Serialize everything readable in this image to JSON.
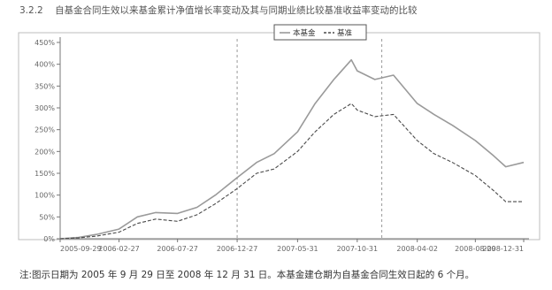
{
  "heading": {
    "number": "3.2.2",
    "title": "自基金合同生效以来基金累计净值增长率变动及其与同期业绩比较基准收益率变动的比较"
  },
  "note": "注:图示日期为 2005 年 9 月 29 日至 2008 年 12 月 31 日。本基金建仓期为自基金合同生效日起的 6 个月。",
  "chart_data": {
    "type": "line",
    "title": "",
    "xlabel": "",
    "ylabel": "",
    "y_tick_labels": [
      "0%",
      "50%",
      "100%",
      "150%",
      "200%",
      "250%",
      "300%",
      "350%",
      "400%",
      "450%"
    ],
    "ylim": [
      0,
      450
    ],
    "x_tick_labels": [
      "2005-09-29",
      "2006-02-27",
      "2006-07-27",
      "2006-12-27",
      "2007-05-31",
      "2007-10-31",
      "2008-04-02",
      "2008-08-29",
      "2008-12-31"
    ],
    "grid": "dashed vertical guide lines",
    "legend": {
      "position": "top-center",
      "entries": [
        "本基金",
        "基准"
      ]
    },
    "colors": {
      "fund": "#9a9a9a",
      "benchmark": "#4a4a4a",
      "guide": "#9a9a9a",
      "axis": "#777777"
    },
    "series": [
      {
        "name": "本基金",
        "style": "solid",
        "x": [
          "2005-09-29",
          "2005-11-15",
          "2006-01-01",
          "2006-02-27",
          "2006-04-15",
          "2006-06-01",
          "2006-07-27",
          "2006-09-15",
          "2006-11-01",
          "2006-12-27",
          "2007-02-15",
          "2007-04-01",
          "2007-05-31",
          "2007-07-15",
          "2007-09-01",
          "2007-10-16",
          "2007-10-31",
          "2007-12-15",
          "2008-02-01",
          "2008-04-02",
          "2008-05-15",
          "2008-07-01",
          "2008-08-29",
          "2008-10-15",
          "2008-11-15",
          "2008-12-31"
        ],
        "values": [
          0,
          3,
          10,
          22,
          50,
          60,
          58,
          72,
          100,
          140,
          175,
          195,
          245,
          310,
          365,
          410,
          385,
          365,
          375,
          310,
          285,
          260,
          225,
          190,
          165,
          175
        ]
      },
      {
        "name": "基准",
        "style": "dashed",
        "x": [
          "2005-09-29",
          "2005-11-15",
          "2006-01-01",
          "2006-02-27",
          "2006-04-15",
          "2006-06-01",
          "2006-07-27",
          "2006-09-15",
          "2006-11-01",
          "2006-12-27",
          "2007-02-15",
          "2007-04-01",
          "2007-05-31",
          "2007-07-15",
          "2007-09-01",
          "2007-10-16",
          "2007-10-31",
          "2007-12-15",
          "2008-02-01",
          "2008-04-02",
          "2008-05-15",
          "2008-07-01",
          "2008-08-29",
          "2008-10-15",
          "2008-11-15",
          "2008-12-31"
        ],
        "values": [
          0,
          2,
          6,
          15,
          35,
          45,
          40,
          55,
          80,
          115,
          150,
          160,
          200,
          245,
          285,
          310,
          295,
          280,
          285,
          225,
          195,
          175,
          145,
          110,
          85,
          85
        ]
      }
    ]
  }
}
